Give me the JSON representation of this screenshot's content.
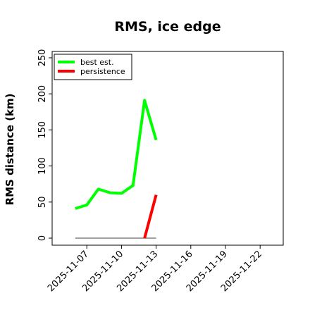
{
  "chart_data": {
    "type": "line",
    "title": "RMS, ice edge",
    "xlabel": "",
    "ylabel": "RMS distance (km)",
    "ylim": [
      0,
      250
    ],
    "xlim": [
      "2025-11-04",
      "2025-11-24"
    ],
    "y_ticks": [
      0,
      50,
      100,
      150,
      200,
      250
    ],
    "x_ticks": [
      "2025-11-07",
      "2025-11-10",
      "2025-11-13",
      "2025-11-16",
      "2025-11-19",
      "2025-11-22"
    ],
    "grid": false,
    "legend_position": "top-left",
    "series": [
      {
        "name": "best est.",
        "color": "#00ff00",
        "points": [
          {
            "x": "2025-11-06",
            "y": 41
          },
          {
            "x": "2025-11-07",
            "y": 46
          },
          {
            "x": "2025-11-08",
            "y": 68
          },
          {
            "x": "2025-11-09",
            "y": 63
          },
          {
            "x": "2025-11-10",
            "y": 62
          },
          {
            "x": "2025-11-11",
            "y": 73
          },
          {
            "x": "2025-11-12",
            "y": 191
          },
          {
            "x": "2025-11-13",
            "y": 136
          }
        ]
      },
      {
        "name": "persistence",
        "color": "#ff0000",
        "points": [
          {
            "x": "2025-11-12",
            "y": 0
          },
          {
            "x": "2025-11-13",
            "y": 60
          }
        ]
      }
    ],
    "reference_line": {
      "color": "#808080",
      "y": 0,
      "x_start": "2025-11-06",
      "x_end": "2025-11-13"
    }
  }
}
